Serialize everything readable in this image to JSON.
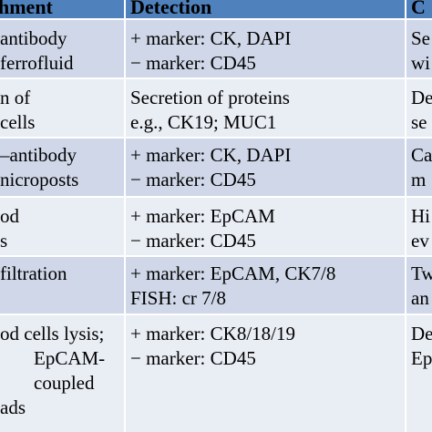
{
  "header": {
    "col1": "hment",
    "col2": "Detection",
    "col3": "C"
  },
  "rows": [
    {
      "col1": [
        " antibody",
        "ferrofluid"
      ],
      "col2": [
        "+ marker: CK, DAPI",
        "− marker: CD45"
      ],
      "col3": [
        "Se",
        "wi"
      ]
    },
    {
      "col1": [
        "n of",
        "cells"
      ],
      "col2": [
        "Secretion of proteins",
        "e.g., CK19; MUC1"
      ],
      "col3": [
        "De",
        "se"
      ]
    },
    {
      "col1": [
        "–antibody",
        "nicroposts"
      ],
      "col2": [
        "+ marker: CK, DAPI",
        "− marker: CD45"
      ],
      "col3": [
        "Ca",
        "m"
      ]
    },
    {
      "col1": [
        "od",
        "s"
      ],
      "col2": [
        "+ marker: EpCAM",
        "− marker: CD45"
      ],
      "col3": [
        "Hi",
        "ev"
      ]
    },
    {
      "col1": [
        " filtration",
        ""
      ],
      "col2": [
        "+ marker: EpCAM, CK7/8",
        "FISH: cr 7/8"
      ],
      "col3": [
        "Tw",
        "an"
      ]
    },
    {
      "col1": [
        "od cells lysis;",
        "EpCAM-",
        "coupled",
        "ads"
      ],
      "col2": [
        "+ marker: CK8/18/19",
        "− marker: CD45",
        "",
        ""
      ],
      "col3": [
        "De",
        "Ep",
        "",
        ""
      ]
    }
  ],
  "colors": {
    "header_bg": "#4f81bd",
    "row_dark": "#cfd7e8",
    "row_light": "#e9edf4",
    "divider": "#ffffff"
  }
}
